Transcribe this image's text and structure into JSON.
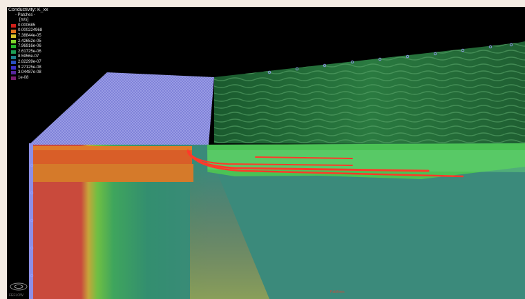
{
  "legend": {
    "title": "Conductivity: K_xx",
    "subtitle": "- Patches -",
    "unit": "[m/s]",
    "entries": [
      {
        "label": "0.000685",
        "color": "#d0201a"
      },
      {
        "label": "0.000224968",
        "color": "#e0721c"
      },
      {
        "label": "7.38844e-05",
        "color": "#d8c22a"
      },
      {
        "label": "2.42652e-05",
        "color": "#7fd12c"
      },
      {
        "label": "7.96916e-06",
        "color": "#25b52a"
      },
      {
        "label": "2.61725e-06",
        "color": "#1e9e56"
      },
      {
        "label": "8.5956e-07",
        "color": "#1c7f8c"
      },
      {
        "label": "2.82299e-07",
        "color": "#2a4fbf"
      },
      {
        "label": "9.27125e-08",
        "color": "#3b2fc8"
      },
      {
        "label": "3.04487e-08",
        "color": "#58279e"
      },
      {
        "label": "1e-08",
        "color": "#7a1e70"
      }
    ]
  },
  "scene": {
    "background": "#000000",
    "mesh_color": "#8d8fe6",
    "pathline_color": "#ff3a2a"
  },
  "orientation": {
    "icon": "axis-orientation-icon",
    "label": "FEFLOW"
  },
  "bottom_label": "Pathlines"
}
